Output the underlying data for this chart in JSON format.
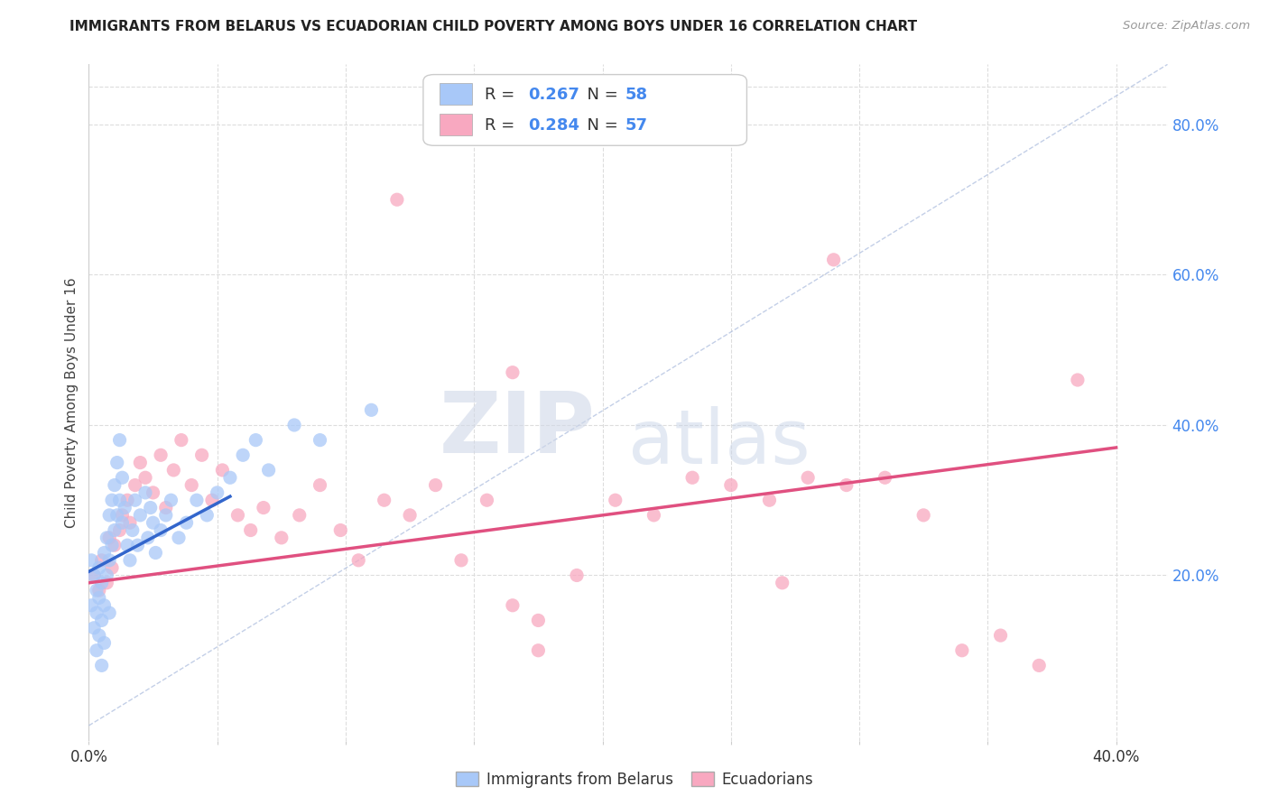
{
  "title": "IMMIGRANTS FROM BELARUS VS ECUADORIAN CHILD POVERTY AMONG BOYS UNDER 16 CORRELATION CHART",
  "source": "Source: ZipAtlas.com",
  "ylabel": "Child Poverty Among Boys Under 16",
  "legend_label_1": "Immigrants from Belarus",
  "legend_label_2": "Ecuadorians",
  "r1": 0.267,
  "n1": 58,
  "r2": 0.284,
  "n2": 57,
  "color1": "#a8c8f8",
  "color2": "#f8a8c0",
  "line1_color": "#3366cc",
  "line2_color": "#e05080",
  "xlim": [
    0.0,
    0.42
  ],
  "ylim": [
    -0.02,
    0.88
  ],
  "right_yticks": [
    0.2,
    0.4,
    0.6,
    0.8
  ],
  "right_yticklabels": [
    "20.0%",
    "40.0%",
    "60.0%",
    "80.0%"
  ],
  "xticks": [
    0.0,
    0.05,
    0.1,
    0.15,
    0.2,
    0.25,
    0.3,
    0.35,
    0.4
  ],
  "scatter1_x": [
    0.001,
    0.001,
    0.002,
    0.002,
    0.003,
    0.003,
    0.003,
    0.004,
    0.004,
    0.004,
    0.005,
    0.005,
    0.005,
    0.006,
    0.006,
    0.006,
    0.007,
    0.007,
    0.008,
    0.008,
    0.008,
    0.009,
    0.009,
    0.01,
    0.01,
    0.011,
    0.011,
    0.012,
    0.012,
    0.013,
    0.013,
    0.014,
    0.015,
    0.016,
    0.017,
    0.018,
    0.019,
    0.02,
    0.022,
    0.023,
    0.024,
    0.025,
    0.026,
    0.028,
    0.03,
    0.032,
    0.035,
    0.038,
    0.042,
    0.046,
    0.05,
    0.055,
    0.06,
    0.065,
    0.07,
    0.08,
    0.09,
    0.11
  ],
  "scatter1_y": [
    0.22,
    0.16,
    0.2,
    0.13,
    0.18,
    0.15,
    0.1,
    0.21,
    0.17,
    0.12,
    0.19,
    0.14,
    0.08,
    0.23,
    0.16,
    0.11,
    0.25,
    0.2,
    0.28,
    0.22,
    0.15,
    0.3,
    0.24,
    0.32,
    0.26,
    0.35,
    0.28,
    0.38,
    0.3,
    0.33,
    0.27,
    0.29,
    0.24,
    0.22,
    0.26,
    0.3,
    0.24,
    0.28,
    0.31,
    0.25,
    0.29,
    0.27,
    0.23,
    0.26,
    0.28,
    0.3,
    0.25,
    0.27,
    0.3,
    0.28,
    0.31,
    0.33,
    0.36,
    0.38,
    0.34,
    0.4,
    0.38,
    0.42
  ],
  "scatter2_x": [
    0.002,
    0.004,
    0.005,
    0.007,
    0.008,
    0.009,
    0.01,
    0.012,
    0.013,
    0.015,
    0.016,
    0.018,
    0.02,
    0.022,
    0.025,
    0.028,
    0.03,
    0.033,
    0.036,
    0.04,
    0.044,
    0.048,
    0.052,
    0.058,
    0.063,
    0.068,
    0.075,
    0.082,
    0.09,
    0.098,
    0.105,
    0.115,
    0.125,
    0.135,
    0.145,
    0.155,
    0.165,
    0.175,
    0.19,
    0.205,
    0.22,
    0.235,
    0.25,
    0.265,
    0.28,
    0.295,
    0.31,
    0.325,
    0.34,
    0.355,
    0.37,
    0.385,
    0.165,
    0.175,
    0.27,
    0.29,
    0.12
  ],
  "scatter2_y": [
    0.2,
    0.18,
    0.22,
    0.19,
    0.25,
    0.21,
    0.24,
    0.26,
    0.28,
    0.3,
    0.27,
    0.32,
    0.35,
    0.33,
    0.31,
    0.36,
    0.29,
    0.34,
    0.38,
    0.32,
    0.36,
    0.3,
    0.34,
    0.28,
    0.26,
    0.29,
    0.25,
    0.28,
    0.32,
    0.26,
    0.22,
    0.3,
    0.28,
    0.32,
    0.22,
    0.3,
    0.16,
    0.14,
    0.2,
    0.3,
    0.28,
    0.33,
    0.32,
    0.3,
    0.33,
    0.32,
    0.33,
    0.28,
    0.1,
    0.12,
    0.08,
    0.46,
    0.47,
    0.1,
    0.19,
    0.62,
    0.7
  ],
  "trend1_x": [
    0.0,
    0.055
  ],
  "trend1_y": [
    0.205,
    0.305
  ],
  "trend2_x": [
    0.0,
    0.4
  ],
  "trend2_y": [
    0.19,
    0.37
  ],
  "ref_line_x": [
    0.0,
    0.42
  ],
  "ref_line_y": [
    0.0,
    0.88
  ],
  "watermark_zip": "ZIP",
  "watermark_atlas": "atlas",
  "background_color": "#ffffff",
  "grid_color": "#dddddd",
  "title_color": "#222222",
  "source_color": "#999999",
  "label_color": "#444444",
  "tick_color": "#4488ee"
}
